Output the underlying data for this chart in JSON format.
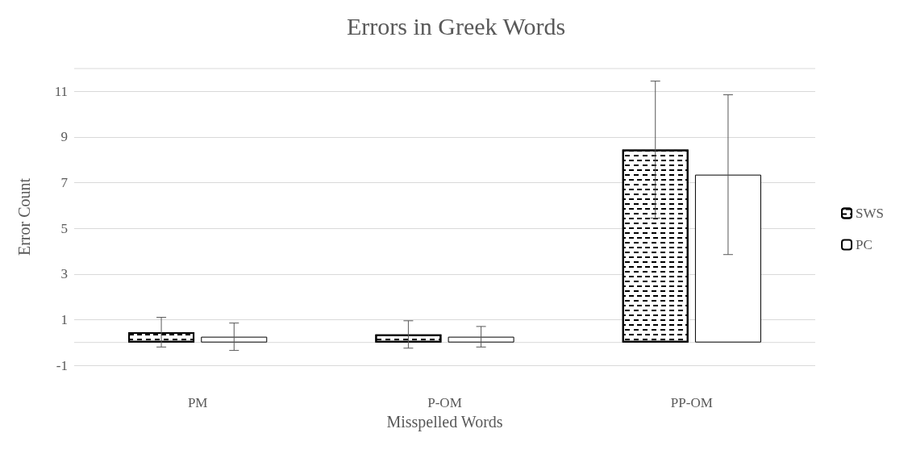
{
  "chart_data": {
    "type": "bar",
    "title": "Errors in Greek Words",
    "xlabel": "Misspelled Words",
    "ylabel": "Error Count",
    "categories": [
      "PM",
      "P-OM",
      "PP-OM"
    ],
    "series": [
      {
        "name": "SWS",
        "color": "#ffffff",
        "values": [
          0.45,
          0.35,
          8.45
        ],
        "errors": [
          0.65,
          0.6,
          3.0
        ]
      },
      {
        "name": "PC",
        "color": "#ffffff",
        "values": [
          0.25,
          0.25,
          7.35
        ],
        "errors": [
          0.6,
          0.45,
          3.5
        ]
      }
    ],
    "ylim": [
      -1,
      12
    ],
    "yticks": [
      -1,
      1,
      3,
      5,
      7,
      9,
      11
    ],
    "grid": "y",
    "legend": "right"
  }
}
